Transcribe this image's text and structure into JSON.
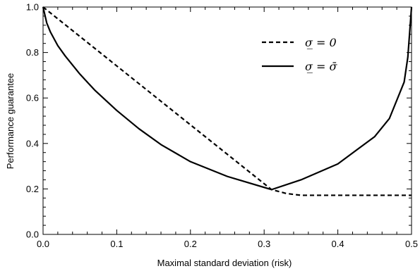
{
  "chart_data": {
    "type": "line",
    "xlabel": "Maximal standard deviation (risk)",
    "ylabel": "Performance guarantee",
    "xlim": [
      0,
      0.5
    ],
    "ylim": [
      0,
      1.0
    ],
    "x_ticks": [
      "0.0",
      "0.1",
      "0.2",
      "0.3",
      "0.4",
      "0.5"
    ],
    "y_ticks": [
      "0.0",
      "0.2",
      "0.4",
      "0.6",
      "0.8",
      "1.0"
    ],
    "x_tick_values": [
      0,
      0.1,
      0.2,
      0.3,
      0.4,
      0.5
    ],
    "y_tick_values": [
      0,
      0.2,
      0.4,
      0.6,
      0.8,
      1.0
    ],
    "grid": false,
    "legend_position": "top-right",
    "series": [
      {
        "name": "σ̲ = 0",
        "style": "dashed",
        "color": "#000000",
        "x": [
          0.0,
          0.31,
          0.33,
          0.35,
          0.4,
          0.45,
          0.5
        ],
        "y": [
          1.0,
          0.197,
          0.18,
          0.172,
          0.172,
          0.172,
          0.172
        ]
      },
      {
        "name": "σ̲ = σ̄",
        "style": "solid",
        "color": "#000000",
        "x": [
          0.0,
          0.005,
          0.01,
          0.02,
          0.03,
          0.05,
          0.07,
          0.1,
          0.13,
          0.16,
          0.2,
          0.25,
          0.31,
          0.35,
          0.4,
          0.45,
          0.47,
          0.49,
          0.495,
          0.5
        ],
        "y": [
          1.0,
          0.93,
          0.89,
          0.83,
          0.785,
          0.705,
          0.635,
          0.545,
          0.465,
          0.395,
          0.32,
          0.255,
          0.197,
          0.24,
          0.31,
          0.43,
          0.51,
          0.67,
          0.78,
          1.0
        ]
      }
    ]
  }
}
